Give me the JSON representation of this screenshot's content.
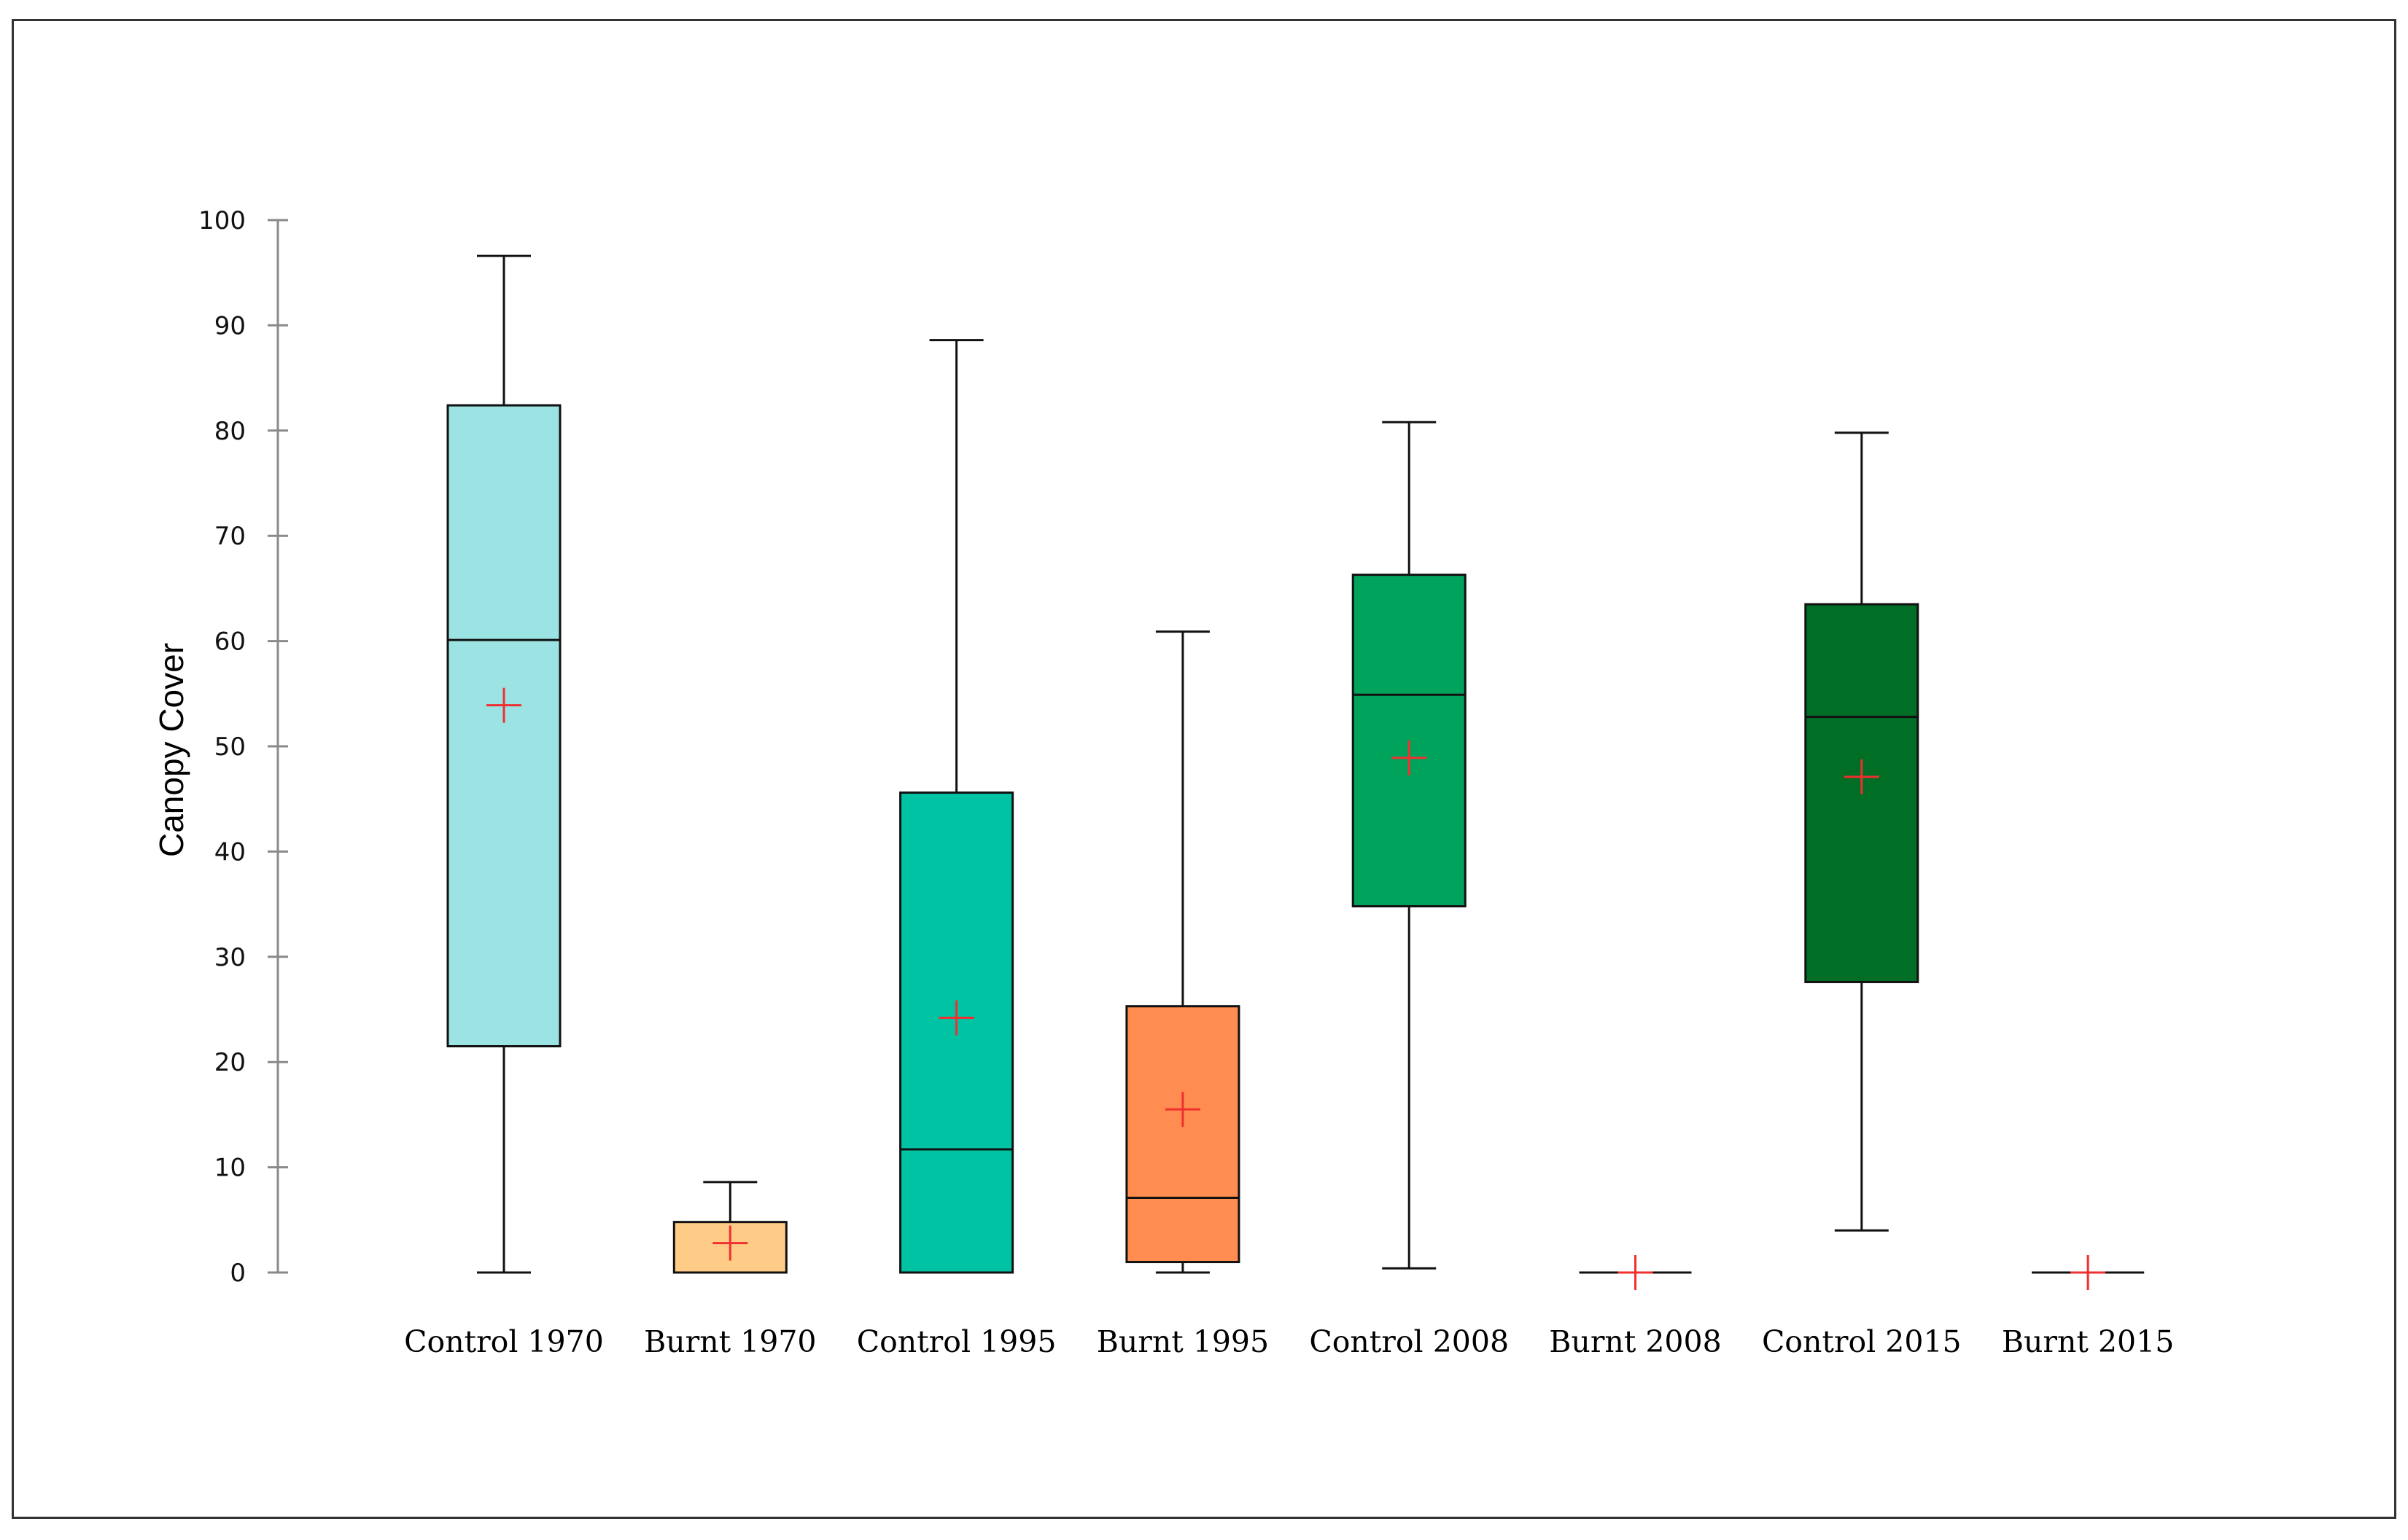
{
  "chart_data": {
    "type": "box",
    "title": "",
    "xlabel": "",
    "ylabel": "Canopy Cover",
    "ylim": [
      0,
      100
    ],
    "yticks": [
      0,
      10,
      20,
      30,
      40,
      50,
      60,
      70,
      80,
      90,
      100
    ],
    "grid": false,
    "legend": "none",
    "categories": [
      "Control 1970",
      "Burnt 1970",
      "Control 1995",
      "Burnt 1995",
      "Control 2008",
      "Burnt 2008",
      "Control 2015",
      "Burnt 2015"
    ],
    "boxes": [
      {
        "name": "Control 1970",
        "min": 0,
        "q1": 21.5,
        "median": 60.1,
        "q3": 82.4,
        "max": 96.6,
        "mean": 53.9,
        "color": "#9CE3E3"
      },
      {
        "name": "Burnt 1970",
        "min": 0,
        "q1": 0,
        "median": 0,
        "q3": 4.8,
        "max": 8.6,
        "mean": 2.8,
        "color": "#FFCC88"
      },
      {
        "name": "Control 1995",
        "min": 0,
        "q1": 0,
        "median": 11.7,
        "q3": 45.6,
        "max": 88.6,
        "mean": 24.2,
        "color": "#00C3A3"
      },
      {
        "name": "Burnt 1995",
        "min": 0,
        "q1": 1.0,
        "median": 7.1,
        "q3": 25.3,
        "max": 60.9,
        "mean": 15.5,
        "color": "#FF8C50"
      },
      {
        "name": "Control 2008",
        "min": 0.4,
        "q1": 34.8,
        "median": 54.9,
        "q3": 66.3,
        "max": 80.8,
        "mean": 48.9,
        "color": "#00A35C"
      },
      {
        "name": "Burnt 2008",
        "min": 0,
        "q1": 0,
        "median": 0,
        "q3": 0,
        "max": 0,
        "mean": 0,
        "color": "#FFFFFF"
      },
      {
        "name": "Control 2015",
        "min": 4.0,
        "q1": 27.6,
        "median": 52.8,
        "q3": 63.5,
        "max": 79.8,
        "mean": 47.1,
        "color": "#006E24"
      },
      {
        "name": "Burnt 2015",
        "min": 0,
        "q1": 0,
        "median": 0,
        "q3": 0,
        "max": 0,
        "mean": 0,
        "color": "#FFFFFF"
      }
    ],
    "mean_marker_color": "#F03030"
  }
}
